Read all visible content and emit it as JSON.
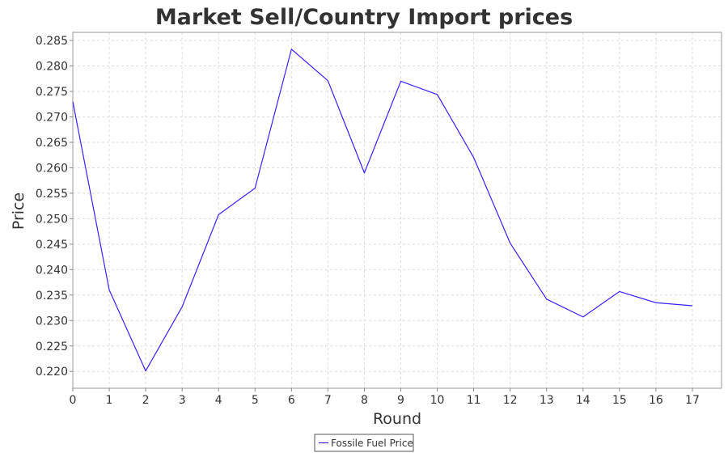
{
  "chart_data": {
    "type": "line",
    "title": "Market Sell/Country Import prices",
    "xlabel": "Round",
    "ylabel": "Price",
    "x": [
      0,
      1,
      2,
      3,
      4,
      5,
      6,
      7,
      8,
      9,
      10,
      11,
      12,
      13,
      14,
      15,
      16,
      17
    ],
    "xlim": [
      0,
      17.8
    ],
    "ylim": [
      0.2167,
      0.2866
    ],
    "xticks": [
      "0",
      "1",
      "2",
      "3",
      "4",
      "5",
      "6",
      "7",
      "8",
      "9",
      "10",
      "11",
      "12",
      "13",
      "14",
      "15",
      "16",
      "17"
    ],
    "yticks": [
      "0.220",
      "0.225",
      "0.230",
      "0.235",
      "0.240",
      "0.245",
      "0.250",
      "0.255",
      "0.260",
      "0.265",
      "0.270",
      "0.275",
      "0.280",
      "0.285"
    ],
    "grid": true,
    "legend_position": "bottom-center",
    "series": [
      {
        "name": "Fossile Fuel Price",
        "color": "#3b1fff",
        "values": [
          0.273,
          0.236,
          0.2201,
          0.2327,
          0.2508,
          0.256,
          0.2833,
          0.2771,
          0.259,
          0.277,
          0.2744,
          0.262,
          0.2452,
          0.2342,
          0.2307,
          0.2357,
          0.2335,
          0.2329
        ]
      }
    ]
  }
}
